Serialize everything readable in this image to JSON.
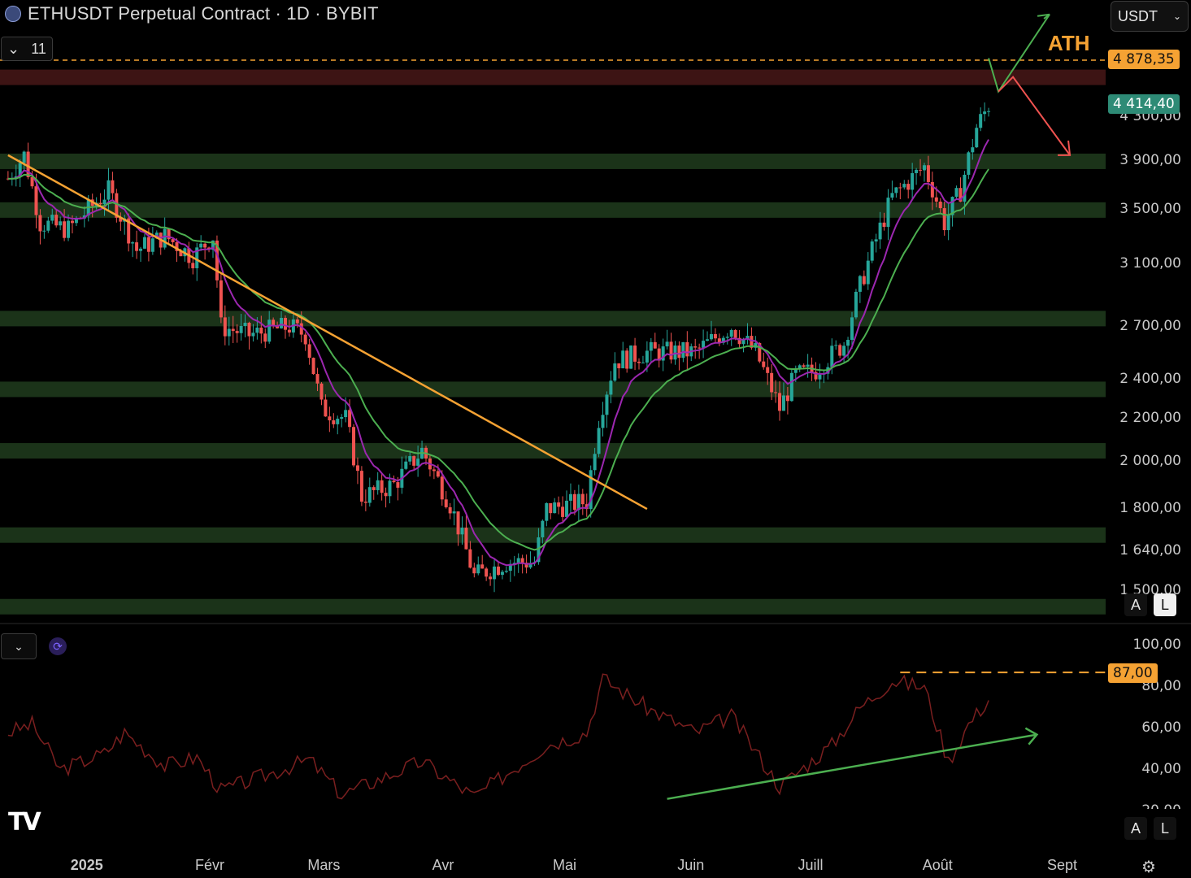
{
  "header": {
    "title": "ETHUSDT Perpetual Contract · 1D · BYBIT",
    "interval_count": "11"
  },
  "currency_select": {
    "value": "USDT"
  },
  "annotations": {
    "ath_label": "ATH"
  },
  "price_tags": {
    "ath": "4 878,35",
    "last": "4 414,40",
    "rsi_level": "87,00"
  },
  "price_axis": [
    "4 300,00",
    "3 900,00",
    "3 500,00",
    "3 100,00",
    "2 700,00",
    "2 400,00",
    "2 200,00",
    "2 000,00",
    "1 800,00",
    "1 640,00",
    "1 500,00"
  ],
  "rsi_axis": [
    "100,00",
    "80,00",
    "60,00",
    "40,00",
    "20,00"
  ],
  "time_axis": [
    "2025",
    "Févr",
    "Mars",
    "Avr",
    "Mai",
    "Juin",
    "Juill",
    "Août",
    "Sept"
  ],
  "scale_buttons": {
    "auto": "A",
    "log": "L"
  },
  "colors": {
    "up": "#26a69a",
    "down": "#ef5350",
    "zone": "#1b3319",
    "resistance_zone": "#3d1414",
    "trendline": "#f5a233",
    "ema_fast": "#9c27b0",
    "ema_slow": "#4caf50",
    "rsi": "#7a1f1f",
    "arrow_up": "#4caf50",
    "arrow_down": "#ef5350"
  },
  "icons": [
    "eth-logo-icon",
    "chevron-down-icon",
    "sync-icon",
    "tradingview-logo-icon",
    "settings-icon"
  ],
  "chart_data": {
    "type": "candlestick",
    "title": "ETHUSDT Perpetual Contract · 1D · BYBIT",
    "scale": "log",
    "ylim": [
      1500,
      4878.35
    ],
    "x_range": [
      "2024-12-10",
      "2025-09-01"
    ],
    "price_path": [
      [
        "2024-12-12",
        3750
      ],
      [
        "2024-12-16",
        3950
      ],
      [
        "2024-12-20",
        3400
      ],
      [
        "2024-12-27",
        3350
      ],
      [
        "2025-01-06",
        3650
      ],
      [
        "2025-01-13",
        3200
      ],
      [
        "2025-01-20",
        3300
      ],
      [
        "2025-01-27",
        3150
      ],
      [
        "2025-02-01",
        3300
      ],
      [
        "2025-02-03",
        2700
      ],
      [
        "2025-02-10",
        2650
      ],
      [
        "2025-02-20",
        2700
      ],
      [
        "2025-02-24",
        2650
      ],
      [
        "2025-02-28",
        2250
      ],
      [
        "2025-03-06",
        2200
      ],
      [
        "2025-03-10",
        1850
      ],
      [
        "2025-03-18",
        1900
      ],
      [
        "2025-03-25",
        2050
      ],
      [
        "2025-04-01",
        1820
      ],
      [
        "2025-04-07",
        1550
      ],
      [
        "2025-04-15",
        1600
      ],
      [
        "2025-04-22",
        1600
      ],
      [
        "2025-04-25",
        1800
      ],
      [
        "2025-05-05",
        1830
      ],
      [
        "2025-05-08",
        2200
      ],
      [
        "2025-05-12",
        2500
      ],
      [
        "2025-05-20",
        2550
      ],
      [
        "2025-06-01",
        2550
      ],
      [
        "2025-06-10",
        2700
      ],
      [
        "2025-06-16",
        2550
      ],
      [
        "2025-06-22",
        2250
      ],
      [
        "2025-06-26",
        2420
      ],
      [
        "2025-07-01",
        2450
      ],
      [
        "2025-07-08",
        2600
      ],
      [
        "2025-07-12",
        2950
      ],
      [
        "2025-07-20",
        3600
      ],
      [
        "2025-07-28",
        3850
      ],
      [
        "2025-08-02",
        3400
      ],
      [
        "2025-08-06",
        3650
      ],
      [
        "2025-08-10",
        4200
      ],
      [
        "2025-08-13",
        4414.4
      ]
    ],
    "last_price": 4414.4,
    "ath": 4878.35,
    "support_zones": [
      3900,
      3500,
      2750,
      2350,
      2050,
      1700,
      1450
    ],
    "resistance_zone": 4700,
    "trendline": {
      "from": [
        "2024-12-12",
        3950
      ],
      "to": [
        "2025-05-20",
        1800
      ]
    },
    "indicators": [
      "EMA fast",
      "EMA slow"
    ],
    "rsi": {
      "level": 87,
      "ylim": [
        20,
        100
      ],
      "path": [
        [
          "2024-12-12",
          58
        ],
        [
          "2024-12-18",
          62
        ],
        [
          "2024-12-25",
          40
        ],
        [
          "2025-01-05",
          48
        ],
        [
          "2025-01-10",
          58
        ],
        [
          "2025-01-20",
          42
        ],
        [
          "2025-01-28",
          46
        ],
        [
          "2025-02-03",
          30
        ],
        [
          "2025-02-15",
          38
        ],
        [
          "2025-02-25",
          45
        ],
        [
          "2025-03-05",
          28
        ],
        [
          "2025-03-15",
          36
        ],
        [
          "2025-03-25",
          44
        ],
        [
          "2025-04-07",
          27
        ],
        [
          "2025-04-15",
          38
        ],
        [
          "2025-04-25",
          52
        ],
        [
          "2025-05-05",
          58
        ],
        [
          "2025-05-09",
          84
        ],
        [
          "2025-05-20",
          70
        ],
        [
          "2025-06-01",
          58
        ],
        [
          "2025-06-10",
          66
        ],
        [
          "2025-06-22",
          32
        ],
        [
          "2025-07-05",
          52
        ],
        [
          "2025-07-12",
          70
        ],
        [
          "2025-07-20",
          83
        ],
        [
          "2025-07-28",
          80
        ],
        [
          "2025-08-03",
          44
        ],
        [
          "2025-08-08",
          62
        ],
        [
          "2025-08-13",
          74
        ]
      ],
      "trendline": {
        "from": [
          "2025-05-25",
          26
        ],
        "to": [
          "2025-08-25",
          57
        ]
      }
    }
  }
}
